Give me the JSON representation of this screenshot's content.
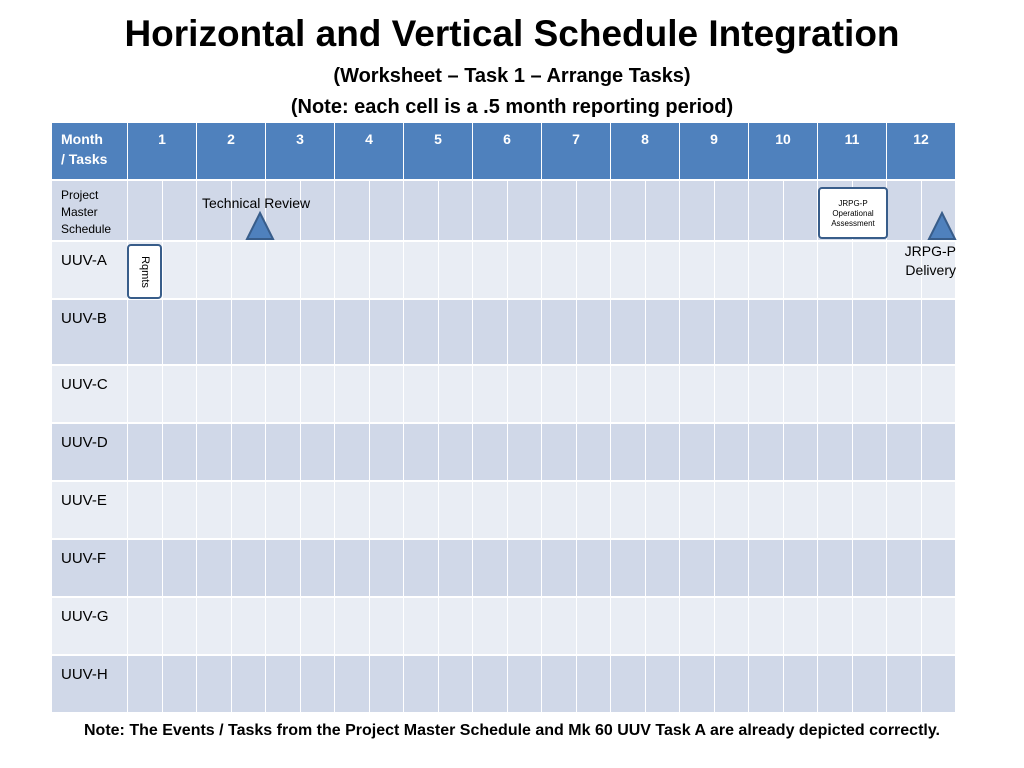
{
  "title": "Horizontal and Vertical Schedule Integration",
  "subtitle1": "(Worksheet – Task 1 – Arrange Tasks)",
  "subtitle2": "(Note:  each cell is a .5 month reporting period)",
  "table": {
    "header_first": [
      "Month",
      "/ Tasks"
    ],
    "months": [
      "1",
      "2",
      "3",
      "4",
      "5",
      "6",
      "7",
      "8",
      "9",
      "10",
      "11",
      "12"
    ],
    "rows": [
      "Project Master Schedule",
      "UUV-A",
      "UUV-B",
      "UUV-C",
      "UUV-D",
      "UUV-E",
      "UUV-F",
      "UUV-G",
      "UUV-H"
    ]
  },
  "annotations": {
    "technical_review": "Technical Review",
    "operational_assessment": [
      "JRPG-P",
      "Operational",
      "Assessment"
    ],
    "rqmts": "Rqmts",
    "delivery": [
      "JRPG-P",
      "Delivery"
    ]
  },
  "colors": {
    "header": "#4f81bd",
    "row_dark": "#d0d8e8",
    "row_light": "#e9edf4",
    "milestone_fill": "#4f81bd",
    "box_border": "#385d8a"
  },
  "note": "Note:  The Events / Tasks from the Project Master Schedule and Mk 60 UUV Task A are already depicted correctly."
}
